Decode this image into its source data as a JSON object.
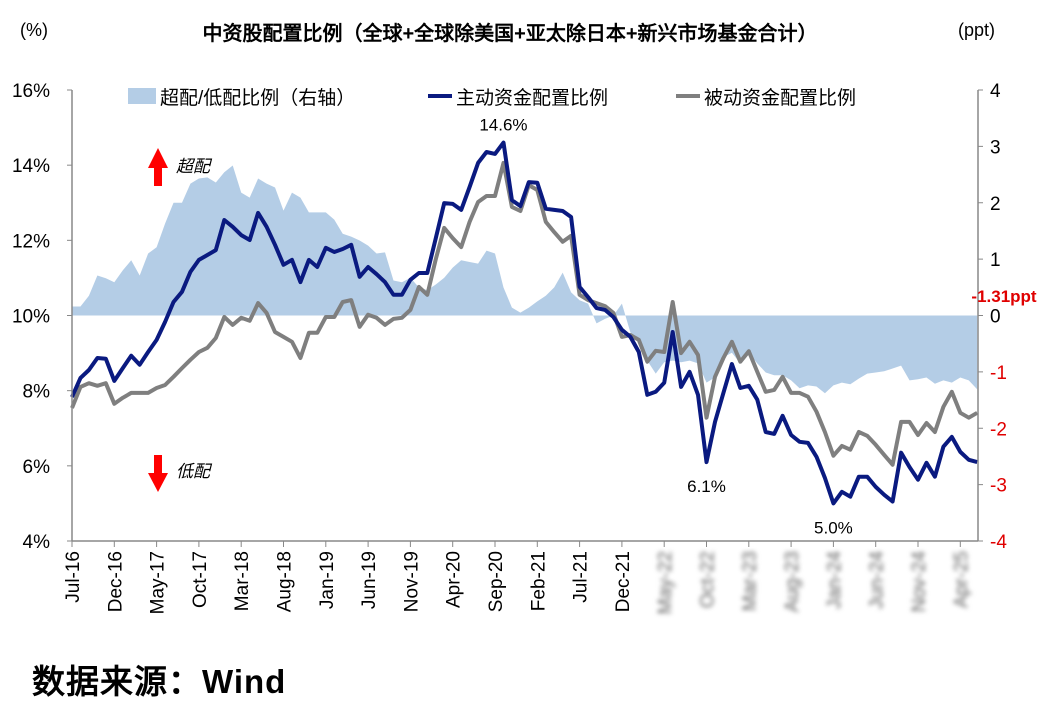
{
  "chart_data": {
    "type": "line",
    "title": "中资股配置比例（全球+全球除美国+亚太除日本+新兴市场基金合计）",
    "left_axis_unit": "(%)",
    "right_axis_unit": "(ppt)",
    "frequency": "monthly",
    "x_tick_labels": [
      "Jul-16",
      "Dec-16",
      "May-17",
      "Oct-17",
      "Mar-18",
      "Aug-18",
      "Jan-19",
      "Jun-19",
      "Nov-19",
      "Apr-20",
      "Sep-20",
      "Feb-21",
      "Jul-21",
      "Dec-21",
      "May-22",
      "Oct-22",
      "Mar-23",
      "Aug-23",
      "Jan-24",
      "Jun-24",
      "Nov-24",
      "Apr-25"
    ],
    "x_tick_step_months": 5,
    "blurred_x_tick_labels_from": "May-22",
    "y_left": {
      "ylim": [
        4,
        16
      ],
      "ticks": [
        "4%",
        "6%",
        "8%",
        "10%",
        "12%",
        "14%",
        "16%"
      ],
      "tick_values": [
        4,
        6,
        8,
        10,
        12,
        14,
        16
      ]
    },
    "y_right": {
      "ylim": [
        -4,
        4
      ],
      "ticks": [
        4,
        3,
        2,
        1,
        0,
        -1,
        -2,
        -3,
        -4
      ],
      "negative_color": "#e00000"
    },
    "legend_position": "top",
    "grid": false,
    "series": [
      {
        "name": "超配/低配比例（右轴）",
        "type": "area",
        "axis": "right",
        "color": "#b4cde6",
        "values": [
          0.16,
          0.16,
          0.35,
          0.71,
          0.66,
          0.59,
          0.8,
          0.98,
          0.71,
          1.1,
          1.21,
          1.63,
          2.0,
          2.0,
          2.34,
          2.43,
          2.45,
          2.36,
          2.54,
          2.66,
          2.18,
          2.09,
          2.43,
          2.34,
          2.27,
          1.86,
          2.18,
          2.09,
          1.83,
          1.83,
          1.83,
          1.7,
          1.45,
          1.4,
          1.33,
          1.24,
          1.1,
          1.12,
          0.62,
          0.59,
          0.67,
          0.5,
          0.45,
          0.55,
          0.67,
          0.85,
          0.98,
          0.95,
          0.92,
          1.15,
          1.1,
          0.5,
          0.14,
          0.05,
          0.14,
          0.25,
          0.35,
          0.5,
          0.76,
          0.41,
          0.27,
          0.21,
          -0.14,
          -0.06,
          0,
          0.21,
          -0.3,
          -0.44,
          -0.8,
          -1.03,
          -0.83,
          -0.8,
          -0.83,
          -0.8,
          -0.85,
          -1.19,
          -1.1,
          -0.74,
          -0.66,
          -0.85,
          -0.66,
          -0.85,
          -1.01,
          -1.06,
          -1.06,
          -1.15,
          -1.29,
          -1.24,
          -1.26,
          -1.38,
          -1.24,
          -1.19,
          -1.22,
          -1.12,
          -1.03,
          -1.01,
          -0.99,
          -0.94,
          -0.89,
          -1.15,
          -1.13,
          -1.1,
          -1.21,
          -1.15,
          -1.19,
          -1.1,
          -1.15,
          -1.31
        ]
      },
      {
        "name": "主动资金配置比例",
        "type": "line",
        "axis": "left",
        "color": "#0a1a80",
        "values": [
          7.83,
          8.34,
          8.55,
          8.87,
          8.85,
          8.26,
          8.6,
          8.93,
          8.69,
          9.03,
          9.35,
          9.83,
          10.36,
          10.63,
          11.16,
          11.48,
          11.61,
          11.74,
          12.54,
          12.36,
          12.14,
          12.01,
          12.73,
          12.36,
          11.88,
          11.35,
          11.48,
          10.89,
          11.48,
          11.29,
          11.8,
          11.69,
          11.77,
          11.88,
          11.03,
          11.29,
          11.1,
          10.89,
          10.55,
          10.55,
          10.95,
          11.13,
          11.13,
          12.06,
          12.99,
          12.97,
          12.81,
          13.42,
          14.06,
          14.35,
          14.3,
          14.6,
          13.07,
          12.91,
          13.55,
          13.53,
          12.84,
          12.81,
          12.78,
          12.62,
          10.76,
          10.49,
          10.2,
          10.15,
          9.96,
          9.62,
          9.43,
          9.03,
          7.89,
          7.97,
          8.21,
          9.56,
          8.1,
          8.5,
          7.89,
          6.1,
          7.17,
          7.94,
          8.71,
          8.07,
          8.13,
          7.76,
          6.9,
          6.85,
          7.33,
          6.82,
          6.64,
          6.61,
          6.24,
          5.68,
          5.0,
          5.31,
          5.18,
          5.71,
          5.71,
          5.44,
          5.23,
          5.05,
          6.35,
          5.97,
          5.63,
          6.08,
          5.71,
          6.51,
          6.77,
          6.37,
          6.16,
          6.1
        ]
      },
      {
        "name": "被动资金配置比例",
        "type": "line",
        "axis": "left",
        "color": "#7f7f7f",
        "values": [
          7.54,
          8.1,
          8.2,
          8.13,
          8.2,
          7.65,
          7.81,
          7.94,
          7.94,
          7.94,
          8.07,
          8.15,
          8.37,
          8.6,
          8.82,
          9.03,
          9.14,
          9.4,
          9.96,
          9.75,
          9.94,
          9.86,
          10.33,
          10.07,
          9.56,
          9.43,
          9.3,
          8.87,
          9.54,
          9.54,
          9.96,
          9.96,
          10.36,
          10.41,
          9.7,
          10.02,
          9.94,
          9.75,
          9.91,
          9.94,
          10.15,
          10.76,
          10.55,
          11.5,
          12.33,
          12.06,
          11.82,
          12.49,
          13.02,
          13.18,
          13.18,
          14.06,
          12.89,
          12.78,
          13.47,
          13.34,
          12.49,
          12.22,
          11.96,
          12.12,
          10.55,
          10.41,
          10.33,
          10.25,
          10.07,
          9.43,
          9.48,
          9.35,
          8.77,
          9.06,
          9.03,
          10.36,
          9.0,
          9.3,
          8.95,
          7.28,
          8.37,
          8.87,
          9.3,
          8.77,
          9.05,
          8.5,
          7.97,
          8.02,
          8.37,
          7.94,
          7.94,
          7.84,
          7.44,
          6.9,
          6.27,
          6.53,
          6.43,
          6.9,
          6.8,
          6.56,
          6.29,
          6.03,
          7.17,
          7.17,
          6.82,
          7.14,
          6.9,
          7.57,
          7.97,
          7.41,
          7.28,
          7.41
        ]
      }
    ],
    "annotations": [
      {
        "text": "14.6%",
        "series": 1,
        "index": 51,
        "position": "above"
      },
      {
        "text": "6.1%",
        "series": 1,
        "index": 75,
        "position": "below"
      },
      {
        "text": "5.0%",
        "series": 1,
        "index": 90,
        "position": "below"
      },
      {
        "text": "-1.31ppt",
        "series": 0,
        "index": 107,
        "position": "above",
        "color": "#e00000"
      }
    ],
    "markers": [
      {
        "text": "超配",
        "icon": "red-up-arrow",
        "color": "#ff0000"
      },
      {
        "text": "低配",
        "icon": "red-down-arrow",
        "color": "#ff0000"
      }
    ]
  },
  "source": "数据来源：Wind"
}
